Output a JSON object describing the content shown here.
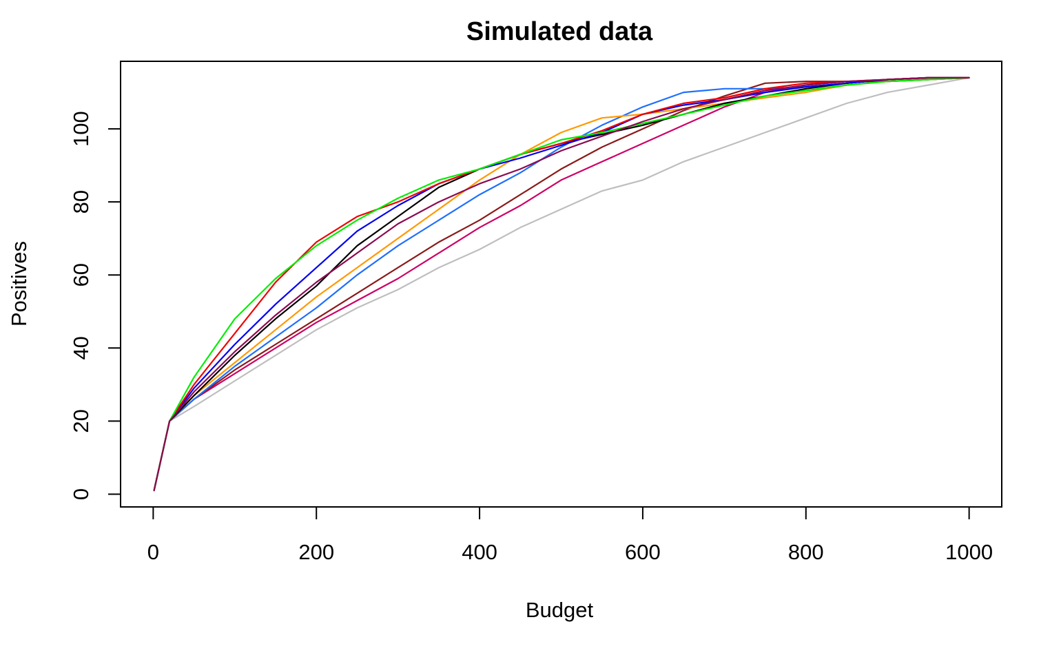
{
  "chart_data": {
    "type": "line",
    "title": "Simulated data",
    "xlabel": "Budget",
    "ylabel": "Positives",
    "xlim": [
      -40,
      1040
    ],
    "ylim": [
      -3.5,
      118.5
    ],
    "xticks": [
      0,
      200,
      400,
      600,
      800,
      1000
    ],
    "yticks": [
      0,
      20,
      40,
      60,
      80,
      100
    ],
    "grid": false,
    "legend": "none",
    "series": [
      {
        "color": "#BEBEBE",
        "x": [
          1,
          20,
          50,
          100,
          150,
          200,
          250,
          300,
          350,
          400,
          450,
          500,
          550,
          600,
          650,
          700,
          750,
          800,
          850,
          900,
          950,
          1000
        ],
        "y": [
          1,
          20,
          24,
          31,
          38,
          45,
          51,
          56,
          62,
          67,
          73,
          78,
          83,
          86,
          91,
          95,
          99,
          103,
          107,
          110,
          112,
          114
        ]
      },
      {
        "color": "#CD0066",
        "x": [
          1,
          20,
          50,
          100,
          150,
          200,
          250,
          300,
          350,
          400,
          450,
          500,
          550,
          600,
          650,
          700,
          750,
          800,
          850,
          900,
          950,
          1000
        ],
        "y": [
          1,
          20,
          26,
          33,
          40,
          47,
          53,
          59,
          66,
          73,
          79,
          86,
          91,
          96,
          101,
          106,
          110,
          112,
          113,
          113,
          113.5,
          114
        ]
      },
      {
        "color": "#8B1A1A",
        "x": [
          1,
          20,
          50,
          100,
          150,
          200,
          250,
          300,
          350,
          400,
          450,
          500,
          550,
          600,
          650,
          700,
          750,
          800,
          850,
          900,
          950,
          1000
        ],
        "y": [
          1,
          20,
          26,
          34,
          41,
          48,
          55,
          62,
          69,
          75,
          82,
          89,
          95,
          100,
          105,
          109,
          112.5,
          113,
          113,
          113,
          113.5,
          114
        ]
      },
      {
        "color": "#1E6FFF",
        "x": [
          1,
          20,
          50,
          100,
          150,
          200,
          250,
          300,
          350,
          400,
          450,
          500,
          550,
          600,
          650,
          700,
          750,
          800,
          850,
          900,
          950,
          1000
        ],
        "y": [
          1,
          20,
          26,
          35,
          43,
          51,
          60,
          68,
          75,
          82,
          88,
          95,
          101,
          106,
          110,
          111,
          111,
          111.5,
          112.5,
          113.5,
          114,
          114
        ]
      },
      {
        "color": "#FF9900",
        "x": [
          1,
          20,
          50,
          100,
          150,
          200,
          250,
          300,
          350,
          400,
          450,
          500,
          550,
          600,
          650,
          700,
          750,
          800,
          850,
          900,
          950,
          1000
        ],
        "y": [
          1,
          20,
          27,
          36,
          45,
          54,
          62,
          70,
          78,
          86,
          93,
          99,
          103,
          104,
          105.5,
          107,
          108.5,
          110,
          112,
          113,
          113.5,
          114
        ]
      },
      {
        "color": "#000000",
        "x": [
          1,
          20,
          50,
          100,
          150,
          200,
          250,
          300,
          350,
          400,
          450,
          500,
          550,
          600,
          650,
          700,
          750,
          800,
          850,
          900,
          950,
          1000
        ],
        "y": [
          1,
          20,
          27,
          38,
          48,
          57,
          68,
          76,
          84,
          89,
          93,
          96,
          98.5,
          101,
          104,
          107,
          109,
          111,
          112.5,
          113.5,
          114,
          114
        ]
      },
      {
        "color": "#0000EE",
        "x": [
          1,
          20,
          50,
          100,
          150,
          200,
          250,
          300,
          350,
          400,
          450,
          500,
          550,
          600,
          650,
          700,
          750,
          800,
          850,
          900,
          950,
          1000
        ],
        "y": [
          1,
          20,
          29,
          41,
          52,
          62,
          72,
          79,
          85,
          89,
          92,
          95.5,
          99,
          104,
          106.5,
          108,
          110,
          111.5,
          112.5,
          113.5,
          114,
          114
        ]
      },
      {
        "color": "#EE0000",
        "x": [
          1,
          20,
          50,
          100,
          150,
          200,
          250,
          300,
          350,
          400,
          450,
          500,
          550,
          600,
          650,
          700,
          750,
          800,
          850,
          900,
          950,
          1000
        ],
        "y": [
          1,
          20,
          30,
          44,
          58,
          69,
          76,
          80,
          85,
          89,
          93,
          96,
          99.5,
          104,
          107,
          108.5,
          111,
          112.5,
          113,
          113.5,
          114,
          114
        ]
      },
      {
        "color": "#00EE00",
        "x": [
          1,
          20,
          50,
          100,
          150,
          200,
          250,
          300,
          350,
          400,
          450,
          500,
          550,
          600,
          650,
          700,
          750,
          800,
          850,
          900,
          950,
          1000
        ],
        "y": [
          1,
          20,
          32,
          48,
          59,
          68,
          75,
          81,
          86,
          89,
          93,
          97,
          99,
          101.5,
          104,
          106.5,
          109,
          110.5,
          112,
          113,
          113.5,
          114
        ]
      },
      {
        "color": "#8B0A50",
        "x": [
          1,
          20,
          50,
          100,
          150,
          200,
          250,
          300,
          350,
          400,
          450,
          500,
          550,
          600,
          650,
          700,
          750,
          800,
          850,
          900,
          950,
          1000
        ],
        "y": [
          1,
          20,
          28,
          39,
          49,
          58,
          66,
          74,
          80,
          85,
          89,
          94,
          98,
          102,
          105.5,
          108,
          110.5,
          112,
          113,
          113.5,
          114,
          114
        ]
      }
    ]
  }
}
